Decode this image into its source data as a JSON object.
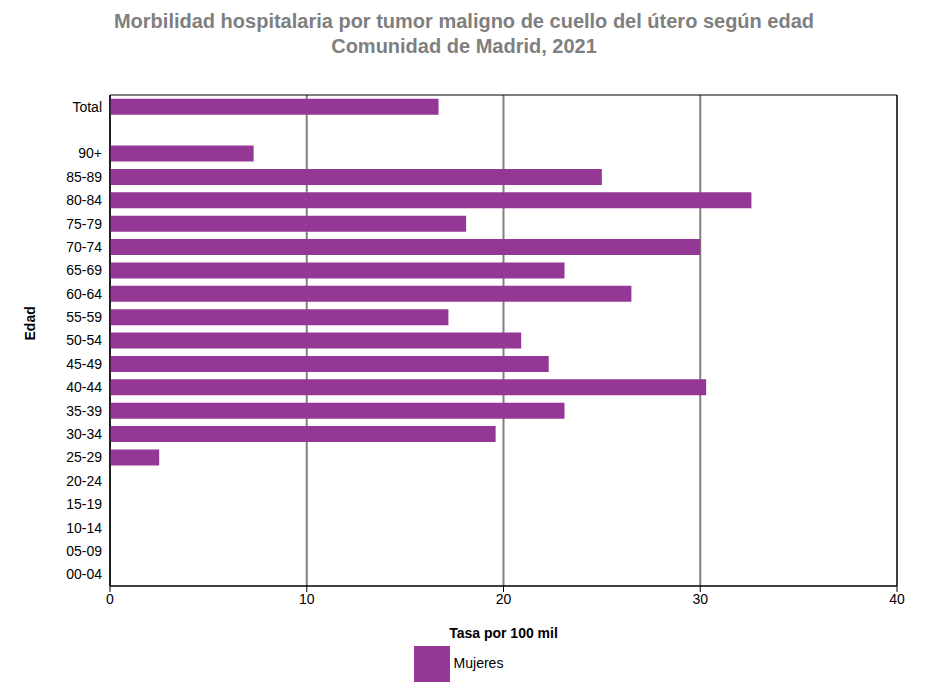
{
  "chart_data": {
    "type": "bar",
    "orientation": "horizontal",
    "title": "Morbilidad hospitalaria por tumor maligno de cuello del útero según edad",
    "subtitle": "Comunidad de Madrid, 2021",
    "x_label": "Tasa por 100 mil",
    "y_label": "Edad",
    "categories": [
      "Total",
      null,
      "90+",
      "85-89",
      "80-84",
      "75-79",
      "70-74",
      "65-69",
      "60-64",
      "55-59",
      "50-54",
      "45-49",
      "40-44",
      "35-39",
      "30-34",
      "25-29",
      "20-24",
      "15-19",
      "10-14",
      "05-09",
      "00-04"
    ],
    "series": [
      {
        "name": "Mujeres",
        "color": "#953795",
        "values": [
          16.7,
          null,
          7.3,
          25.0,
          32.6,
          18.1,
          30.0,
          23.1,
          26.5,
          17.2,
          20.9,
          22.3,
          30.3,
          23.1,
          19.6,
          2.5,
          0,
          0,
          0,
          0,
          0
        ]
      }
    ],
    "xlim": [
      0,
      40
    ],
    "xticks": [
      0,
      10,
      20,
      30,
      40
    ],
    "grid": true,
    "legend": "bottom"
  }
}
